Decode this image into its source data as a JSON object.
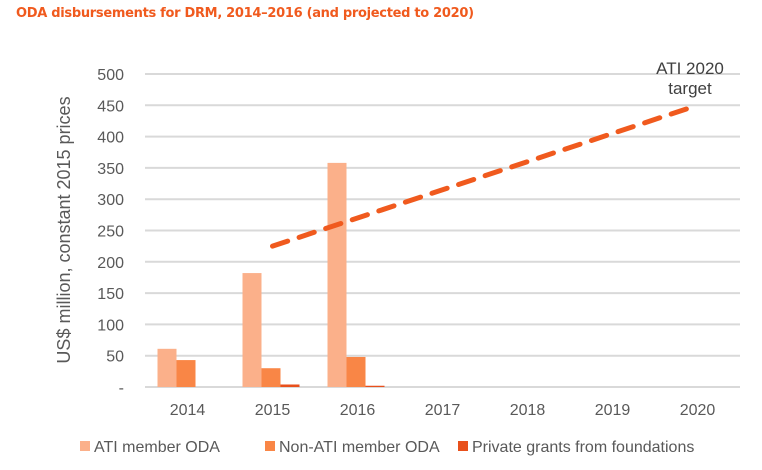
{
  "chart_data": {
    "type": "bar",
    "title": "ODA disbursements for DRM, 2014–2016 (and projected to 2020)",
    "xlabel": "",
    "ylabel": "US$ million, constant 2015 prices",
    "ylim": [
      0,
      500
    ],
    "yticks": [
      "-",
      "50",
      "100",
      "150",
      "200",
      "250",
      "300",
      "350",
      "400",
      "450",
      "500"
    ],
    "categories": [
      "2014",
      "2015",
      "2016",
      "2017",
      "2018",
      "2019",
      "2020"
    ],
    "grid": true,
    "legend_position": "bottom",
    "series": [
      {
        "name": "ATI member ODA",
        "color": "#fbb08a",
        "values": [
          61,
          182,
          358,
          null,
          null,
          null,
          null
        ]
      },
      {
        "name": "Non-ATI member ODA",
        "color": "#f98646",
        "values": [
          43,
          30,
          48,
          null,
          null,
          null,
          null
        ]
      },
      {
        "name": "Private grants from foundations",
        "color": "#e8501c",
        "values": [
          0,
          4,
          2,
          null,
          null,
          null,
          null
        ]
      }
    ],
    "target_line": {
      "name": "ATI 2020 target",
      "color": "#f05a1e",
      "x": [
        "2015",
        "2020"
      ],
      "values": [
        225,
        450
      ]
    },
    "annotation": [
      "ATI 2020",
      "target"
    ]
  }
}
